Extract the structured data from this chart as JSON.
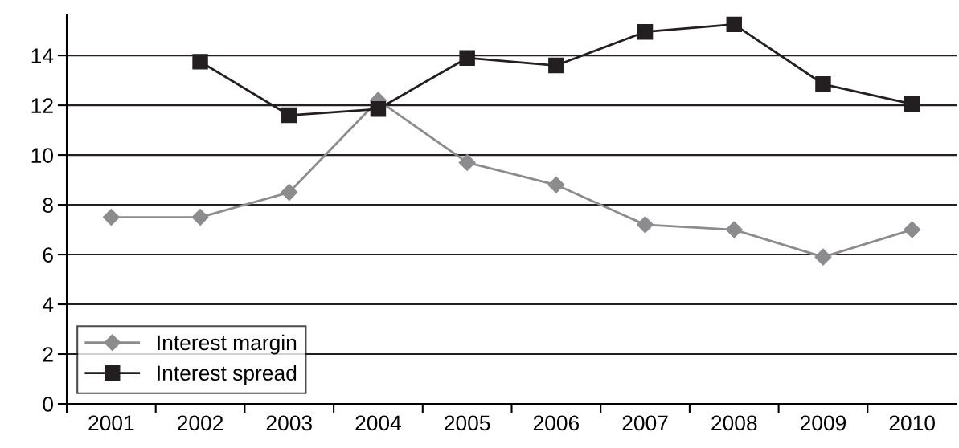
{
  "chart_data": {
    "type": "line",
    "categories": [
      "2001",
      "2002",
      "2003",
      "2004",
      "2005",
      "2006",
      "2007",
      "2008",
      "2009",
      "2010"
    ],
    "series": [
      {
        "name": "Interest margin",
        "color": "#8c8c8e",
        "marker": "diamond",
        "values": [
          7.5,
          7.5,
          8.5,
          12.2,
          9.7,
          8.8,
          7.2,
          7.0,
          5.9,
          7.0
        ]
      },
      {
        "name": "Interest spread",
        "color": "#231f20",
        "marker": "square",
        "values": [
          null,
          13.75,
          11.6,
          11.85,
          13.9,
          13.6,
          14.95,
          15.25,
          12.85,
          12.05
        ]
      }
    ],
    "ylim": [
      0,
      15.65
    ],
    "yticks": [
      0,
      2,
      4,
      6,
      8,
      10,
      12,
      14
    ],
    "grid": "y",
    "legend": "bottom left"
  }
}
